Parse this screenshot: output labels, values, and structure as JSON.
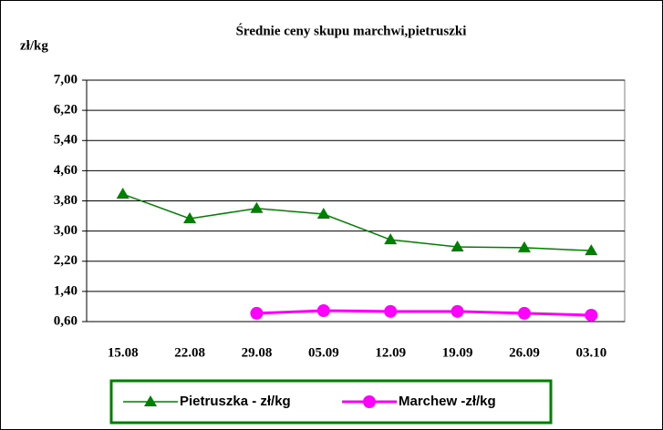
{
  "chart_data": {
    "type": "line",
    "title": "Średnie ceny skupu marchwi,pietruszki",
    "y_label": "zł/kg",
    "categories": [
      "15.08",
      "22.08",
      "29.08",
      "05.09",
      "12.09",
      "19.09",
      "26.09",
      "03.10"
    ],
    "series": [
      {
        "name": "Pietruszka - zł/kg",
        "color": "#008000",
        "marker": "triangle",
        "values": [
          3.98,
          3.33,
          3.6,
          3.45,
          2.77,
          2.58,
          2.56,
          2.48
        ]
      },
      {
        "name": "Marchew -zł/kg",
        "color": "#ff00ff",
        "marker": "circle",
        "values": [
          null,
          null,
          0.82,
          0.89,
          0.87,
          0.87,
          0.82,
          0.77
        ]
      }
    ],
    "ylim": [
      0.6,
      7.0
    ],
    "yticks": [
      {
        "value": 0.6,
        "label": "0,60"
      },
      {
        "value": 1.4,
        "label": "1,40"
      },
      {
        "value": 2.2,
        "label": "2,20"
      },
      {
        "value": 3.0,
        "label": "3,00"
      },
      {
        "value": 3.8,
        "label": "3,80"
      },
      {
        "value": 4.6,
        "label": "4,60"
      },
      {
        "value": 5.4,
        "label": "5,40"
      },
      {
        "value": 6.2,
        "label": "6,20"
      },
      {
        "value": 7.0,
        "label": "7,00"
      }
    ],
    "grid": true
  }
}
